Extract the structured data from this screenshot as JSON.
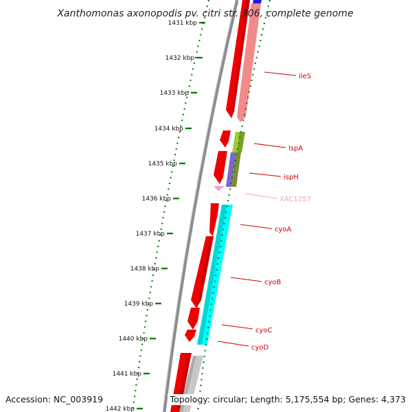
{
  "title": "Xanthomonas axonopodis pv. citri str. 306, complete genome",
  "accession": "Accession: NC_003919",
  "topology": "Topology: circular; Length: 5,175,554 bp; Genes: 4,373",
  "colors": {
    "forward_gene": "#ff0000",
    "reverse_gene": "#f08080",
    "cyo_operon": "#00ffff",
    "lspA": "#99cc33",
    "ispH": "#7b68c8",
    "XAC1257": "#ff99cc",
    "scale": "#008000",
    "label": "#cc0000",
    "backbone": "#888888"
  },
  "scale_ticks": [
    {
      "kbp": 1431,
      "label": "1431 kbp"
    },
    {
      "kbp": 1432,
      "label": "1432 kbp"
    },
    {
      "kbp": 1433,
      "label": "1433 kbp"
    },
    {
      "kbp": 1434,
      "label": "1434 kbp"
    },
    {
      "kbp": 1435,
      "label": "1435 kbp"
    },
    {
      "kbp": 1436,
      "label": "1436 kbp"
    },
    {
      "kbp": 1437,
      "label": "1437 kbp"
    },
    {
      "kbp": 1438,
      "label": "1438 kbp"
    },
    {
      "kbp": 1439,
      "label": "1439 kbp"
    },
    {
      "kbp": 1440,
      "label": "1440 kbp"
    },
    {
      "kbp": 1441,
      "label": "1441 kbp"
    },
    {
      "kbp": 1442,
      "label": "1442 kbp"
    }
  ],
  "gene_labels": [
    {
      "name": "ileS",
      "color": "#cc0000"
    },
    {
      "name": "lspA",
      "color": "#cc0000"
    },
    {
      "name": "ispH",
      "color": "#cc0000"
    },
    {
      "name": "XAC1257",
      "color": "#f4a0c0"
    },
    {
      "name": "cyoA",
      "color": "#cc0000"
    },
    {
      "name": "cyoB",
      "color": "#cc0000"
    },
    {
      "name": "cyoC",
      "color": "#cc0000"
    },
    {
      "name": "cyoD",
      "color": "#cc0000"
    }
  ]
}
